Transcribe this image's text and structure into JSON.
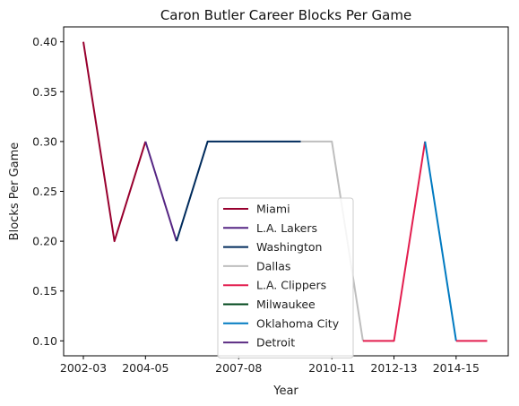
{
  "chart_data": {
    "type": "line",
    "title": "Caron Butler Career Blocks Per Game",
    "xlabel": "Year",
    "ylabel": "Blocks Per Game",
    "x_categories": [
      "2002-03",
      "2003-04",
      "2004-05",
      "2005-06",
      "2006-07",
      "2007-08",
      "2008-09",
      "2009-10",
      "2010-11",
      "2011-12",
      "2012-13",
      "2013-14",
      "2014-15",
      "2015-16"
    ],
    "x_tick_labels": [
      "2002-03",
      "2004-05",
      "2007-08",
      "2010-11",
      "2012-13",
      "2014-15"
    ],
    "y_ticks": [
      "0.10",
      "0.15",
      "0.20",
      "0.25",
      "0.30",
      "0.35",
      "0.40"
    ],
    "ylim": [
      0.085,
      0.415
    ],
    "legend_position": "lower-center",
    "series": [
      {
        "name": "Miami",
        "color": "#98002E",
        "points": [
          [
            "2002-03",
            0.4
          ],
          [
            "2003-04",
            0.2
          ],
          [
            "2004-05",
            0.3
          ]
        ]
      },
      {
        "name": "L.A. Lakers",
        "color": "#552583",
        "points": [
          [
            "2004-05",
            0.3
          ],
          [
            "2005-06",
            0.2
          ]
        ]
      },
      {
        "name": "Washington",
        "color": "#002B5C",
        "points": [
          [
            "2005-06",
            0.2
          ],
          [
            "2006-07",
            0.3
          ],
          [
            "2007-08",
            0.3
          ],
          [
            "2008-09",
            0.3
          ],
          [
            "2009-10",
            0.3
          ]
        ]
      },
      {
        "name": "Dallas",
        "color": "#BEBEBE",
        "points": [
          [
            "2009-10",
            0.3
          ],
          [
            "2010-11",
            0.3
          ],
          [
            "2011-12",
            0.1
          ]
        ]
      },
      {
        "name": "L.A. Clippers",
        "color": "#E31E4F",
        "points": [
          [
            "2011-12",
            0.1
          ],
          [
            "2012-13",
            0.1
          ],
          [
            "2013-14",
            0.3
          ]
        ]
      },
      {
        "name": "Milwaukee",
        "color": "#00471B",
        "points": []
      },
      {
        "name": "Oklahoma City",
        "color": "#007AC1",
        "points": [
          [
            "2013-14",
            0.3
          ],
          [
            "2014-15",
            0.1
          ]
        ]
      },
      {
        "name": "Detroit",
        "color": "#5B2C83",
        "points": []
      },
      {
        "name": "",
        "color": "#E31E4F",
        "points": [
          [
            "2014-15",
            0.1
          ],
          [
            "2015-16",
            0.1
          ]
        ]
      }
    ]
  }
}
